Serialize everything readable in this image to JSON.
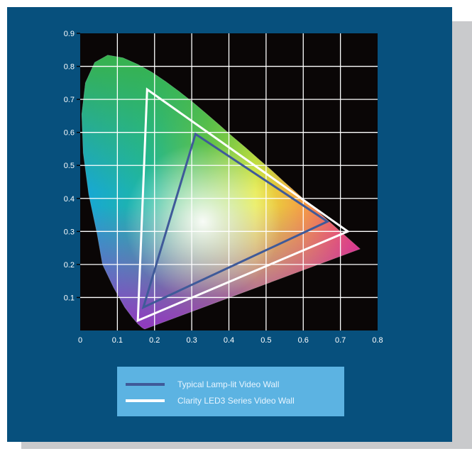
{
  "chart_data": {
    "type": "scatter",
    "title": "",
    "xlabel": "",
    "ylabel": "",
    "xlim": [
      0,
      0.8
    ],
    "ylim": [
      0,
      0.9
    ],
    "x_ticks": [
      "0",
      "0.1",
      "0.2",
      "0.3",
      "0.4",
      "0.5",
      "0.6",
      "0.7",
      "0.8"
    ],
    "y_ticks": [
      "0.1",
      "0.2",
      "0.3",
      "0.4",
      "0.5",
      "0.6",
      "0.7",
      "0.8",
      "0.9"
    ],
    "grid": true,
    "background_color": "#0a0606",
    "panel_color": "#07507d",
    "spectral_locus": [
      [
        0.175,
        0.005
      ],
      [
        0.172,
        0.005
      ],
      [
        0.166,
        0.009
      ],
      [
        0.155,
        0.02
      ],
      [
        0.14,
        0.04
      ],
      [
        0.12,
        0.07
      ],
      [
        0.09,
        0.13
      ],
      [
        0.06,
        0.2
      ],
      [
        0.045,
        0.295
      ],
      [
        0.023,
        0.412
      ],
      [
        0.008,
        0.538
      ],
      [
        0.004,
        0.655
      ],
      [
        0.014,
        0.75
      ],
      [
        0.039,
        0.812
      ],
      [
        0.074,
        0.834
      ],
      [
        0.115,
        0.826
      ],
      [
        0.155,
        0.806
      ],
      [
        0.193,
        0.782
      ],
      [
        0.23,
        0.754
      ],
      [
        0.266,
        0.724
      ],
      [
        0.302,
        0.692
      ],
      [
        0.337,
        0.659
      ],
      [
        0.373,
        0.624
      ],
      [
        0.408,
        0.589
      ],
      [
        0.444,
        0.555
      ],
      [
        0.479,
        0.52
      ],
      [
        0.513,
        0.487
      ],
      [
        0.547,
        0.452
      ],
      [
        0.58,
        0.419
      ],
      [
        0.612,
        0.387
      ],
      [
        0.64,
        0.36
      ],
      [
        0.666,
        0.334
      ],
      [
        0.69,
        0.31
      ],
      [
        0.712,
        0.288
      ],
      [
        0.73,
        0.27
      ],
      [
        0.753,
        0.247
      ]
    ],
    "series": [
      {
        "name": "Typical Lamp-lit Video Wall",
        "color": "#3f5a99",
        "points": [
          [
            0.665,
            0.33
          ],
          [
            0.31,
            0.595
          ],
          [
            0.17,
            0.07
          ]
        ]
      },
      {
        "name": "Clarity LED3 Series Video Wall",
        "color": "#ffffff",
        "points": [
          [
            0.72,
            0.3
          ],
          [
            0.18,
            0.73
          ],
          [
            0.155,
            0.03
          ]
        ]
      }
    ],
    "legend": {
      "position": "bottom-center",
      "background": "#5cb3e2",
      "text_color": "#e8f5ff"
    }
  }
}
